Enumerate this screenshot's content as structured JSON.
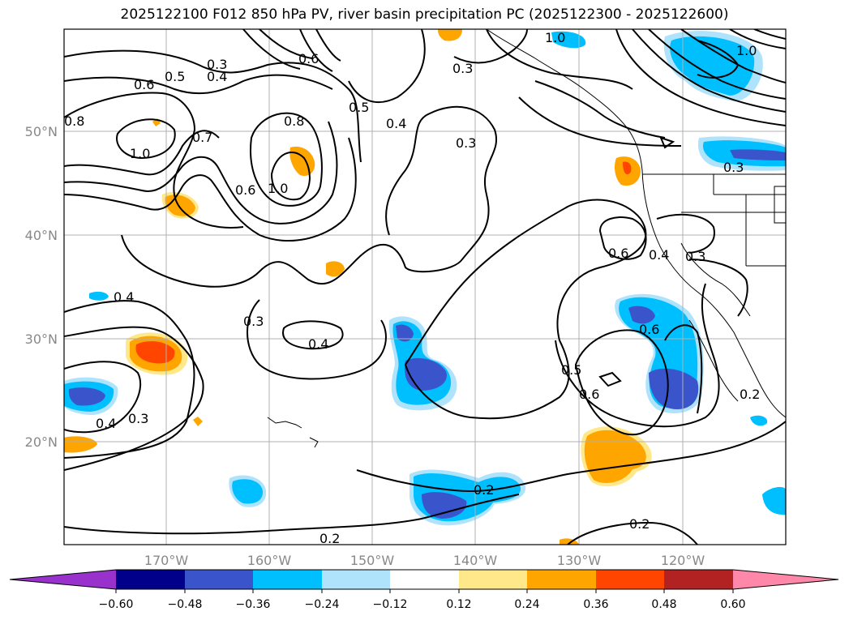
{
  "title": "2025122100 F012 850 hPa PV, river basin precipitation PC (2025122300 - 2025122600)",
  "map": {
    "lon_labels": [
      "170°W",
      "160°W",
      "150°W",
      "140°W",
      "130°W",
      "120°W"
    ],
    "lat_labels": [
      "50°N",
      "40°N",
      "30°N",
      "20°N"
    ],
    "contour_labels": [
      "0.3",
      "0.4",
      "0.5",
      "0.6",
      "0.7",
      "0.8",
      "1.0",
      "0.6",
      "0.8",
      "1.0",
      "0.6",
      "0.5",
      "0.4",
      "0.3",
      "0.3",
      "0.4",
      "0.3",
      "0.4",
      "0.3",
      "0.4",
      "0.6",
      "0.6",
      "0.5",
      "0.6",
      "0.3",
      "0.2",
      "0.2",
      "0.2",
      "0.4",
      "1.0",
      "1.0",
      "0.2",
      "0.3"
    ]
  },
  "colorbar": {
    "labels": [
      "−0.60",
      "−0.48",
      "−0.36",
      "−0.24",
      "−0.12",
      "0.12",
      "0.24",
      "0.36",
      "0.48",
      "0.60"
    ],
    "colors": [
      "#9932cc",
      "#00008b",
      "#3a55cc",
      "#00bfff",
      "#aee3fb",
      "#ffffff",
      "#ffe88a",
      "#ffa500",
      "#ff4500",
      "#b22222",
      "#ff88aa"
    ]
  }
}
